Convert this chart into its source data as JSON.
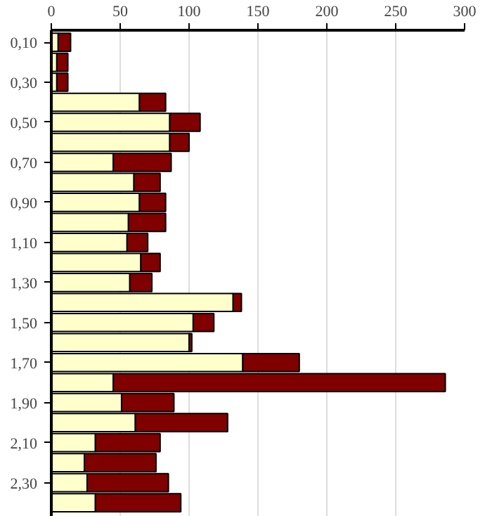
{
  "chart_data": {
    "type": "bar",
    "orientation": "horizontal",
    "stacked": true,
    "categories": [
      "0,10",
      null,
      "0,30",
      null,
      "0,50",
      null,
      "0,70",
      null,
      "0,90",
      null,
      "1,10",
      null,
      "1,30",
      null,
      "1,50",
      null,
      "1,70",
      null,
      "1,90",
      null,
      "2,10",
      null,
      "2,30",
      null
    ],
    "series": [
      {
        "color": "#ffffcc",
        "values": [
          5,
          4,
          4,
          64,
          86,
          86,
          45,
          60,
          64,
          56,
          55,
          65,
          57,
          132,
          103,
          100,
          139,
          45,
          51,
          61,
          32,
          24,
          26,
          32
        ]
      },
      {
        "color": "#800000",
        "values": [
          9,
          8,
          8,
          19,
          22,
          14,
          42,
          19,
          19,
          27,
          15,
          14,
          16,
          6,
          15,
          2,
          41,
          241,
          38,
          67,
          47,
          52,
          59,
          62
        ]
      }
    ],
    "xlim": [
      0,
      300
    ],
    "xticks": [
      0,
      50,
      100,
      150,
      200,
      250,
      300
    ],
    "grid": "x"
  }
}
